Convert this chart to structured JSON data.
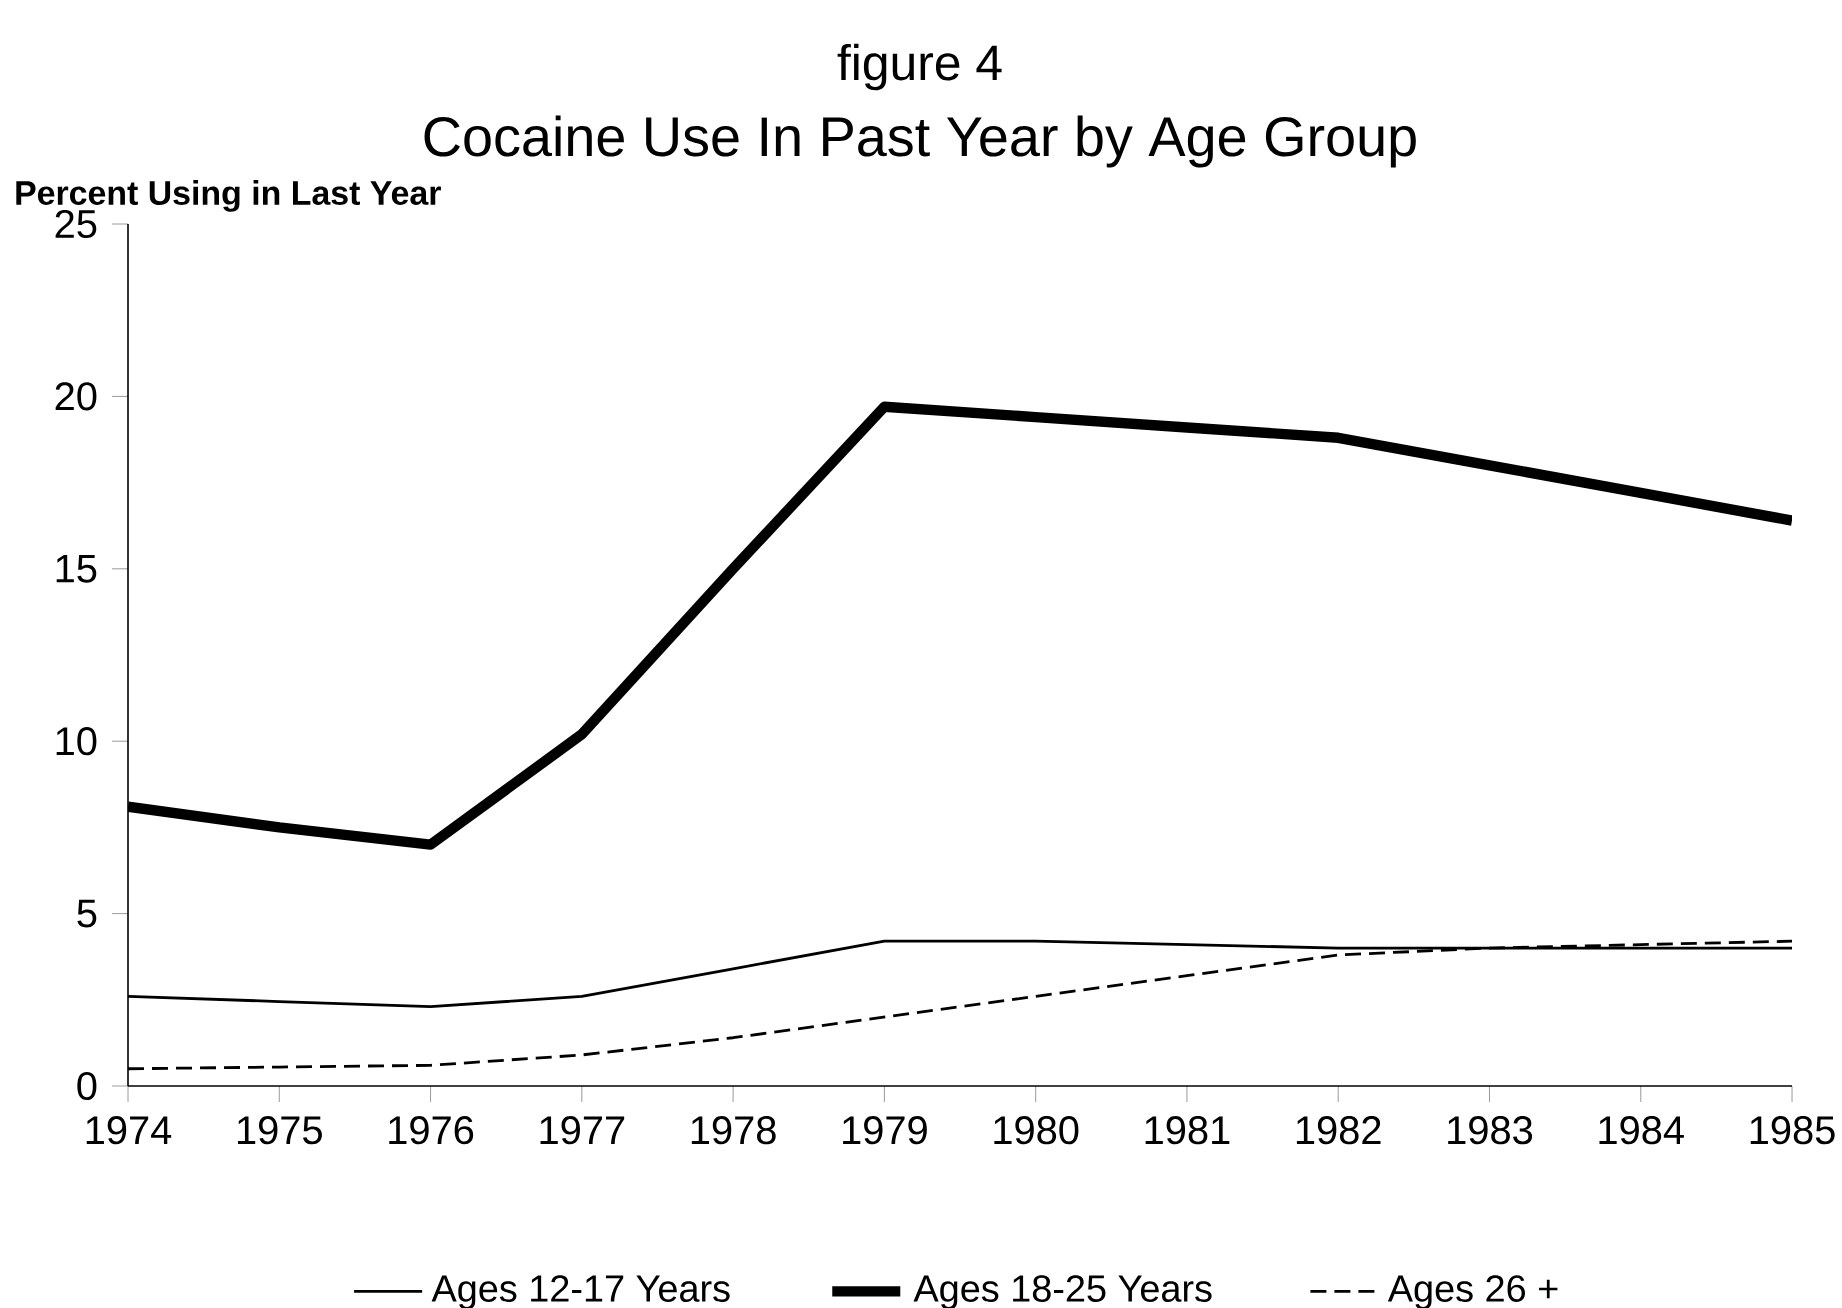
{
  "chart_data": {
    "type": "line",
    "title": "Cocaine Use In Past Year by Age Group",
    "ylabel": "Percent Using in Last Year",
    "annotations": [
      "figure 4"
    ],
    "x": [
      1974,
      1975,
      1976,
      1977,
      1978,
      1979,
      1980,
      1981,
      1982,
      1983,
      1984,
      1985
    ],
    "series": [
      {
        "name": "Ages 12-17 Years",
        "color": "#000000",
        "line_style": "solid",
        "values": [
          2.6,
          2.45,
          2.3,
          2.6,
          3.4,
          4.2,
          4.2,
          4.1,
          4.0,
          4.0,
          4.0,
          4.0
        ]
      },
      {
        "name": "Ages 18-25 Years",
        "color": "#000000",
        "line_style": "solid",
        "values": [
          8.1,
          7.5,
          7.0,
          10.2,
          15.0,
          19.7,
          19.4,
          19.1,
          18.8,
          18.0,
          17.2,
          16.4
        ]
      },
      {
        "name": "Ages 26 +",
        "color": "#000000",
        "line_style": "dashed",
        "values": [
          0.5,
          0.55,
          0.6,
          0.9,
          1.4,
          2.0,
          2.6,
          3.2,
          3.8,
          4.0,
          4.1,
          4.2
        ]
      }
    ],
    "xlim": [
      1974,
      1985
    ],
    "ylim": [
      0,
      25
    ],
    "xticks": [
      1974,
      1975,
      1976,
      1977,
      1978,
      1979,
      1980,
      1981,
      1982,
      1983,
      1984,
      1985
    ],
    "yticks": [
      0,
      5,
      10,
      15,
      20,
      25
    ],
    "grid": false,
    "legend": "bottom",
    "marker": "none"
  }
}
